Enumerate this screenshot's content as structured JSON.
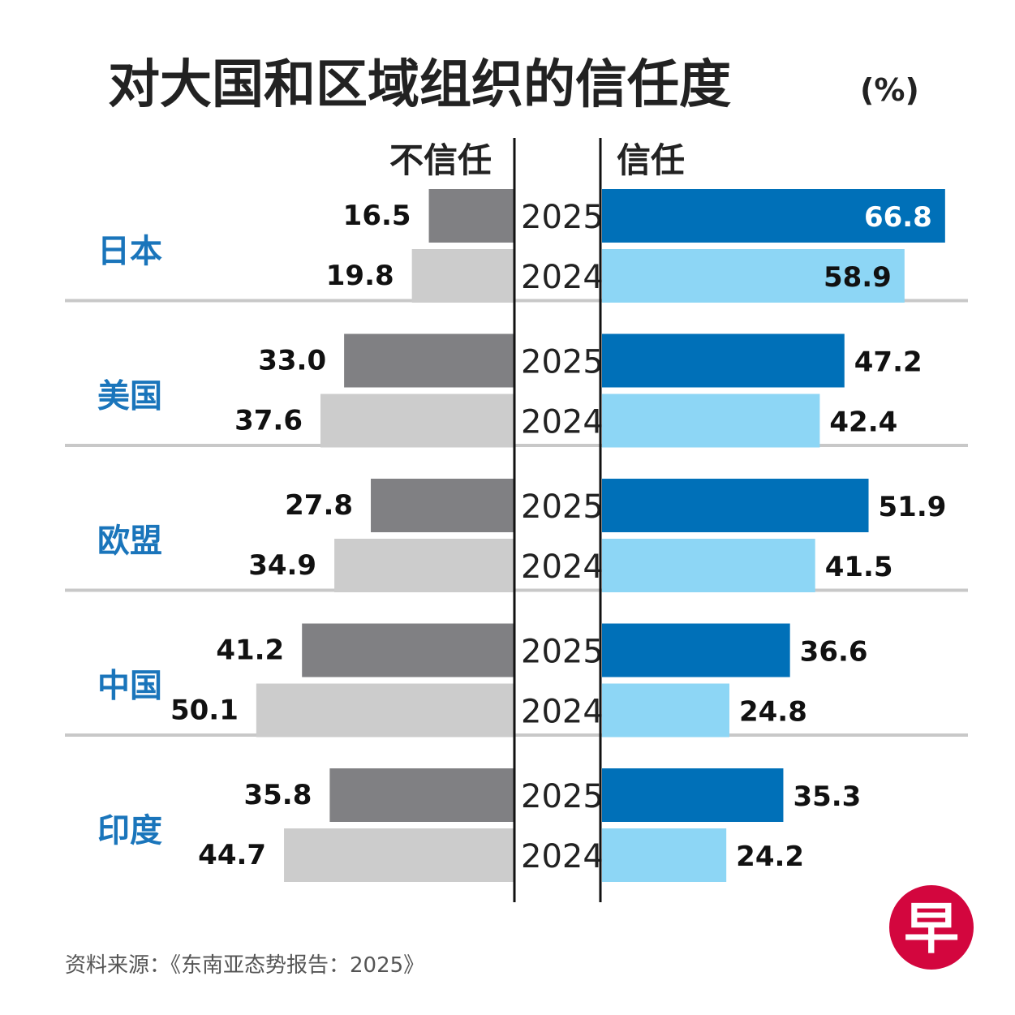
{
  "chart_data": {
    "type": "bar",
    "title": "对大国和区域组织的信任度",
    "unit": "(%)",
    "headers": {
      "distrust": "不信任",
      "trust": "信任"
    },
    "categories": [
      "日本",
      "美国",
      "欧盟",
      "中国",
      "印度"
    ],
    "years": [
      "2025",
      "2024"
    ],
    "series": [
      {
        "name": "不信任",
        "year": "2025",
        "values": [
          16.5,
          33.0,
          27.8,
          41.2,
          35.8
        ],
        "color": "#808083"
      },
      {
        "name": "不信任",
        "year": "2024",
        "values": [
          19.8,
          37.6,
          34.9,
          50.1,
          44.7
        ],
        "color": "#cccccc"
      },
      {
        "name": "信任",
        "year": "2025",
        "values": [
          66.8,
          47.2,
          51.9,
          36.6,
          35.3
        ],
        "color": "#0070b8"
      },
      {
        "name": "信任",
        "year": "2024",
        "values": [
          58.9,
          42.4,
          41.5,
          24.8,
          24.2
        ],
        "color": "#8dd6f5"
      }
    ],
    "category_color": "#1a75bb",
    "source": "资料来源：《东南亚态势报告：2025》"
  },
  "logo": {
    "text": "早",
    "color": "#d3063e"
  }
}
